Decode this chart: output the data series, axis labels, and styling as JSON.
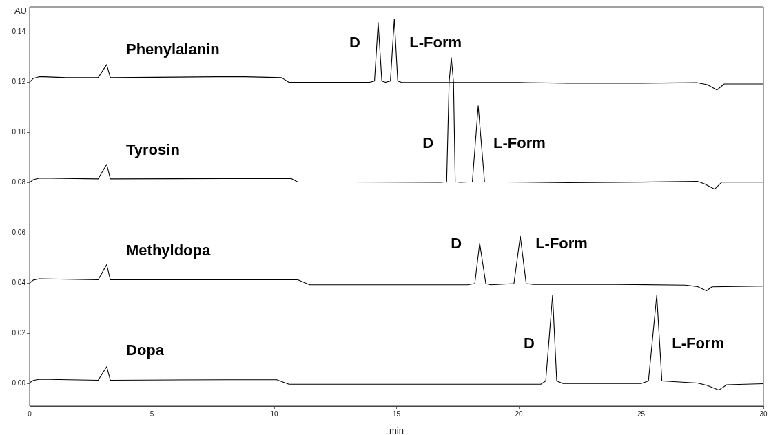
{
  "chart_data": {
    "type": "line",
    "xlabel": "min",
    "ylabel": "AU",
    "xlim": [
      0,
      30
    ],
    "ylim": [
      -0.009,
      0.15
    ],
    "xticks": [
      0,
      5,
      10,
      15,
      20,
      25,
      30
    ],
    "yticks": [
      {
        "value": 0,
        "label": "0,00"
      },
      {
        "value": 0.02,
        "label": "0,02"
      },
      {
        "value": 0.04,
        "label": "0,04"
      },
      {
        "value": 0.06,
        "label": "0,06"
      },
      {
        "value": 0.08,
        "label": "0,08"
      },
      {
        "value": 0.1,
        "label": "0,10"
      },
      {
        "value": 0.12,
        "label": "0,12"
      },
      {
        "value": 0.14,
        "label": "0,14"
      }
    ],
    "grid": false,
    "legend": false,
    "marker": "none",
    "line_style": "solid",
    "series": [
      {
        "name": "Phenylalanin",
        "color": "#000000",
        "x": [
          0,
          0.15,
          0.4,
          1.5,
          2.8,
          3.15,
          3.3,
          6,
          8.5,
          10.3,
          10.6,
          13.9,
          14.1,
          14.25,
          14.4,
          14.55,
          14.75,
          14.91,
          15.05,
          15.2,
          20,
          22,
          25,
          27.3,
          27.7,
          28.1,
          28.4,
          30
        ],
        "values": [
          0.12,
          0.1215,
          0.1222,
          0.1218,
          0.1218,
          0.127,
          0.1218,
          0.122,
          0.1222,
          0.1218,
          0.12,
          0.12,
          0.1205,
          0.1438,
          0.1205,
          0.12,
          0.1205,
          0.1452,
          0.1205,
          0.12,
          0.1199,
          0.1196,
          0.1196,
          0.1198,
          0.119,
          0.1169,
          0.1193,
          0.1193
        ]
      },
      {
        "name": "Tyrosin",
        "color": "#000000",
        "x": [
          0,
          0.15,
          0.4,
          2.8,
          3.15,
          3.3,
          8,
          10.7,
          10.95,
          16.8,
          17.05,
          17.15,
          17.24,
          17.33,
          17.4,
          17.6,
          18.1,
          18.34,
          18.6,
          22,
          25,
          27.3,
          27.6,
          28,
          28.3,
          30
        ],
        "values": [
          0.08,
          0.0812,
          0.0818,
          0.0815,
          0.0873,
          0.0815,
          0.0816,
          0.0816,
          0.0803,
          0.0801,
          0.0803,
          0.12,
          0.1298,
          0.12,
          0.0803,
          0.0801,
          0.0803,
          0.1106,
          0.0803,
          0.08,
          0.0802,
          0.0805,
          0.0795,
          0.0774,
          0.0802,
          0.0802
        ]
      },
      {
        "name": "Methyldopa",
        "color": "#000000",
        "x": [
          0,
          0.15,
          0.4,
          2.8,
          3.15,
          3.3,
          10.95,
          11.45,
          17.9,
          18.2,
          18.4,
          18.65,
          18.85,
          19.8,
          20.06,
          20.3,
          20.6,
          24,
          26.8,
          27.3,
          27.67,
          27.9,
          30
        ],
        "values": [
          0.04,
          0.0412,
          0.0417,
          0.0413,
          0.0473,
          0.0413,
          0.0414,
          0.0393,
          0.0393,
          0.0398,
          0.0559,
          0.0398,
          0.0393,
          0.0398,
          0.0586,
          0.0398,
          0.0395,
          0.0395,
          0.0392,
          0.0386,
          0.0369,
          0.0385,
          0.0388
        ]
      },
      {
        "name": "Dopa",
        "color": "#000000",
        "x": [
          0,
          0.15,
          0.4,
          2.8,
          3.15,
          3.3,
          8,
          10.1,
          10.6,
          20.9,
          21.1,
          21.38,
          21.55,
          21.8,
          25,
          25.3,
          25.64,
          25.85,
          27.3,
          27.7,
          28.18,
          28.5,
          30
        ],
        "values": [
          0.0003,
          0.0012,
          0.0017,
          0.0013,
          0.0067,
          0.0013,
          0.0015,
          0.0015,
          -0.0003,
          -0.0003,
          0.001,
          0.0352,
          0.001,
          0,
          0,
          0.001,
          0.0352,
          0.001,
          0.0002,
          -0.0008,
          -0.0026,
          -0.0005,
          -0.0001
        ]
      }
    ],
    "annotations": [
      "D",
      "L-Form",
      "D",
      "L-Form",
      "D",
      "L-Form",
      "D",
      "L-Form"
    ]
  }
}
